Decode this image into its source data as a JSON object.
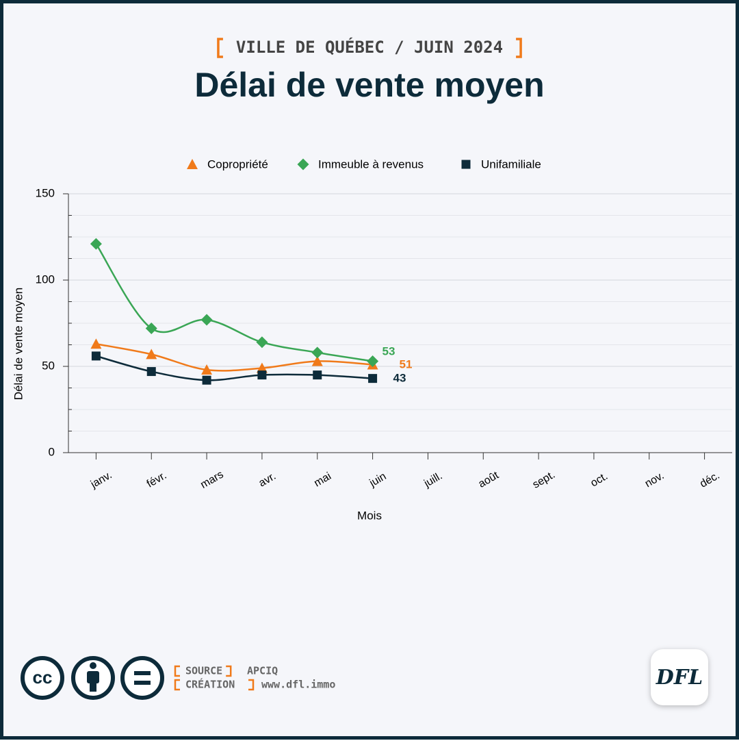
{
  "chart_data": {
    "type": "line",
    "subtitle": "VILLE DE QUÉBEC / JUIN 2024",
    "title": "Délai de vente moyen",
    "x_label": "Mois",
    "y_label": "Délai de vente moyen",
    "categories": [
      "janv.",
      "févr.",
      "mars",
      "avr.",
      "mai",
      "juin",
      "juill.",
      "août",
      "sept.",
      "oct.",
      "nov.",
      "déc."
    ],
    "series": [
      {
        "name": "Copropriété",
        "color": "#f07a1a",
        "marker": "triangle",
        "values": [
          63,
          57,
          48,
          49,
          53,
          51,
          null,
          null,
          null,
          null,
          null,
          null
        ]
      },
      {
        "name": "Immeuble à revenus",
        "color": "#3aa655",
        "marker": "diamond",
        "values": [
          121,
          72,
          77,
          64,
          58,
          53,
          null,
          null,
          null,
          null,
          null,
          null
        ]
      },
      {
        "name": "Unifamiliale",
        "color": "#0d2b3a",
        "marker": "square",
        "values": [
          56,
          47,
          42,
          45,
          45,
          43,
          null,
          null,
          null,
          null,
          null,
          null
        ]
      }
    ],
    "ylim": [
      0,
      150
    ],
    "yticks": [
      0,
      50,
      100,
      150
    ],
    "yminor_ticks": [
      12.5,
      25,
      37.5,
      62.5,
      75,
      87.5,
      112.5,
      125,
      137.5
    ],
    "grid": true,
    "legend": "top"
  },
  "footer": {
    "license": "cc",
    "source_label": "SOURCE",
    "source": "APCIQ",
    "creation_label": "CRÉATION",
    "creation": "www.dfl.immo",
    "logo": "DFL"
  }
}
